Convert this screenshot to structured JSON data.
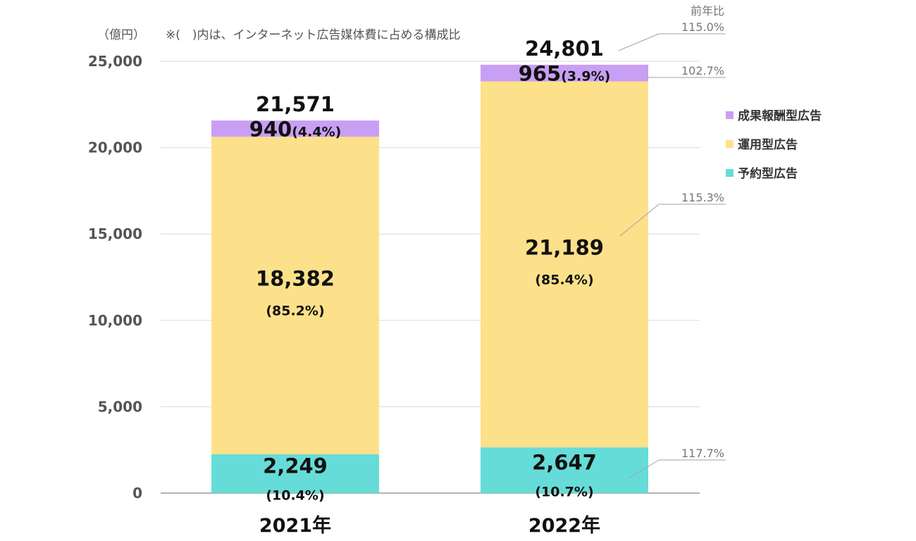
{
  "chart_data": {
    "type": "bar",
    "stacked": true,
    "unit_label": "（億円）",
    "note": "※(　)内は、インターネット広告媒体費に占める構成比",
    "yoy_header": "前年比",
    "categories": [
      "2021年",
      "2022年"
    ],
    "ylim": [
      0,
      25000
    ],
    "yticks": [
      "0",
      "5,000",
      "10,000",
      "15,000",
      "20,000",
      "25,000"
    ],
    "ytick_values": [
      0,
      5000,
      10000,
      15000,
      20000,
      25000
    ],
    "totals": [
      21571,
      24801
    ],
    "total_labels": [
      "21,571",
      "24,801"
    ],
    "total_yoy": "115.0%",
    "series": [
      {
        "name": "予約型広告",
        "color": "#66dcd8",
        "values": [
          2249,
          2647
        ],
        "value_labels": [
          "2,249",
          "2,647"
        ],
        "share_labels": [
          "(10.4%)",
          "(10.7%)"
        ],
        "yoy": "117.7%"
      },
      {
        "name": "運用型広告",
        "color": "#fde18a",
        "values": [
          18382,
          21189
        ],
        "value_labels": [
          "18,382",
          "21,189"
        ],
        "share_labels": [
          "(85.2%)",
          "(85.4%)"
        ],
        "yoy": "115.3%"
      },
      {
        "name": "成果報酬型広告",
        "color": "#c99ff4",
        "values": [
          940,
          965
        ],
        "value_labels": [
          "940",
          "965"
        ],
        "share_labels": [
          "(4.4%)",
          "(3.9%)"
        ],
        "yoy": "102.7%"
      }
    ],
    "legend_order": [
      "成果報酬型広告",
      "運用型広告",
      "予約型広告"
    ],
    "legend_position": "right",
    "grid": true
  }
}
